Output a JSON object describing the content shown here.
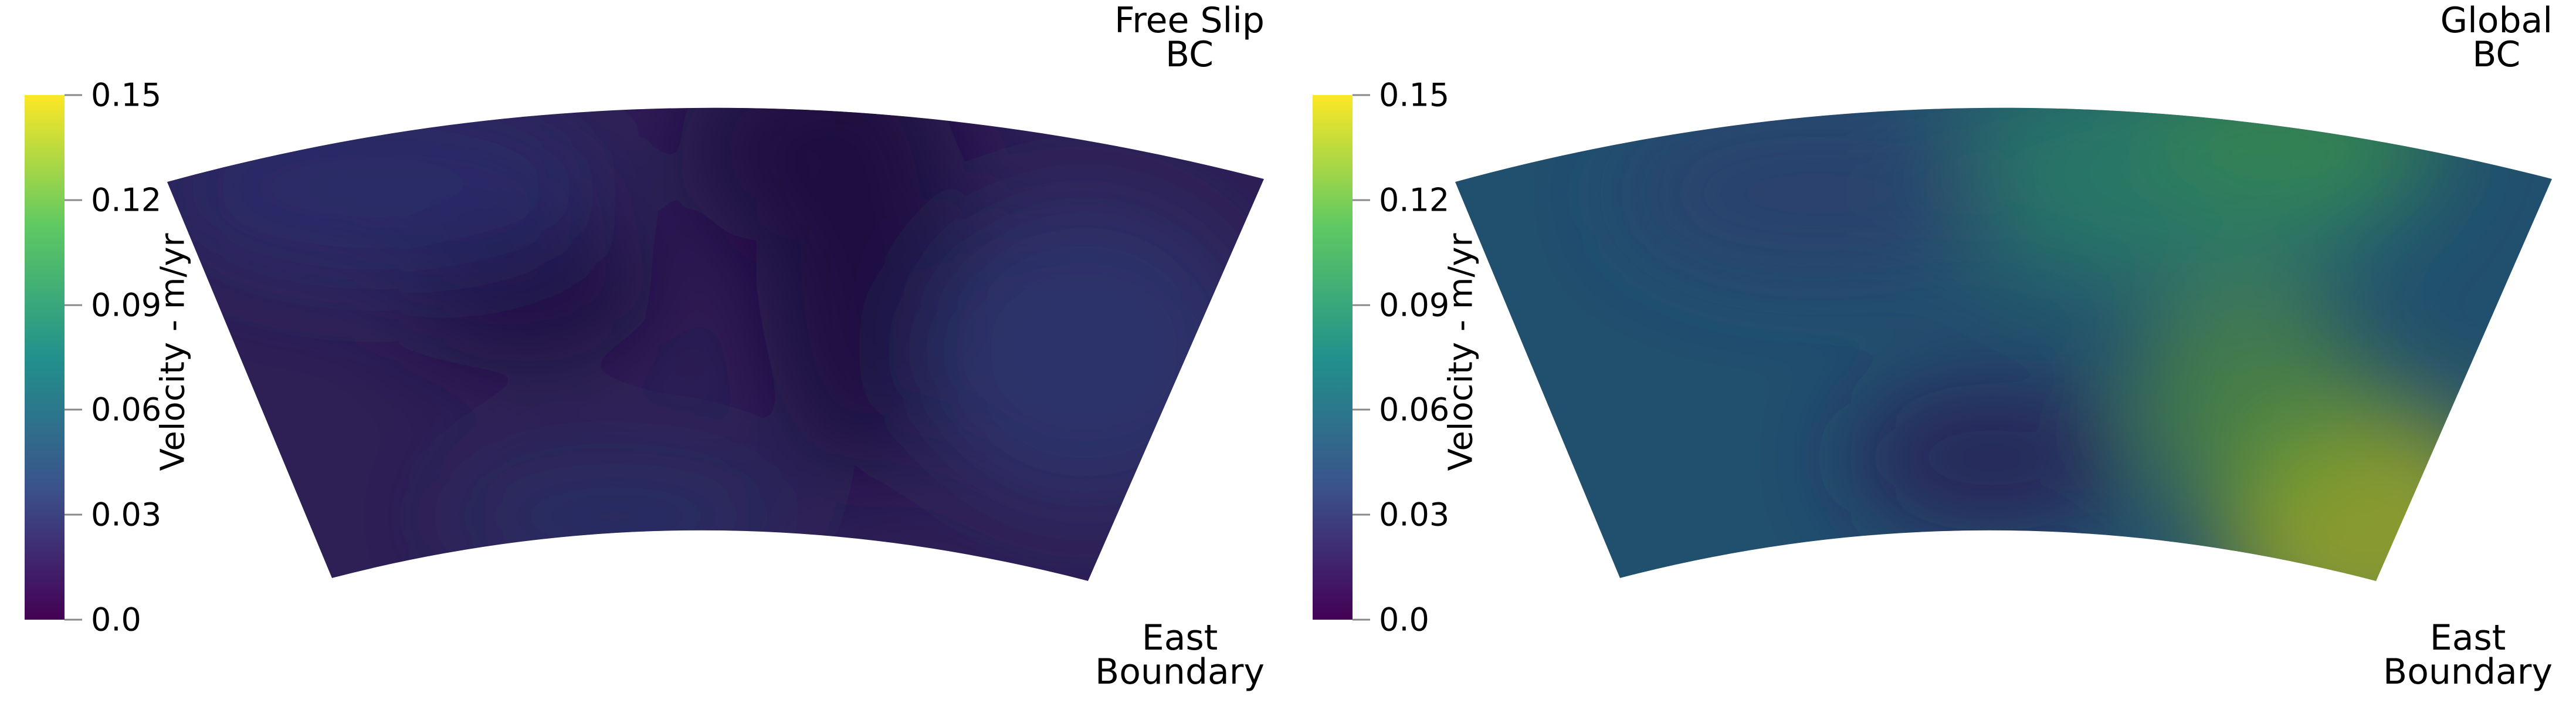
{
  "colorbar": {
    "title": "Velocity - m/yr",
    "ticks": [
      "0.15",
      "0.12",
      "0.09",
      "0.06",
      "0.03",
      "0.0"
    ],
    "colormap": "viridis",
    "stops": [
      "#440154",
      "#3b528b",
      "#21918c",
      "#5ec962",
      "#fde725"
    ]
  },
  "panels": [
    {
      "top_label": "Free Slip\nBC",
      "bottom_label": "East\nBoundary",
      "base_color": "#2e1f55",
      "blobs": [
        {
          "color": "#1e0b3f",
          "opacity": 0.95
        },
        {
          "color": "#1e0b3f",
          "opacity": 0.95
        },
        {
          "color": "#2a2b6a",
          "opacity": 0.9
        },
        {
          "color": "#2b3970",
          "opacity": 0.8
        },
        {
          "color": "#2a356d",
          "opacity": 0.6
        },
        {
          "color": "#1f0a40",
          "opacity": 0.9
        }
      ]
    },
    {
      "top_label": "Global\nBC",
      "bottom_label": "East\nBoundary",
      "base_color": "#214f6e",
      "blobs": [
        {
          "color": "#2a7a66",
          "opacity": 0.9
        },
        {
          "color": "#37884c",
          "opacity": 0.85
        },
        {
          "color": "#8f9e2a",
          "opacity": 0.95
        },
        {
          "color": "#5b9930",
          "opacity": 0.6
        },
        {
          "color": "#2a1f55",
          "opacity": 0.85
        },
        {
          "color": "#2c3d6e",
          "opacity": 0.7
        }
      ]
    }
  ]
}
